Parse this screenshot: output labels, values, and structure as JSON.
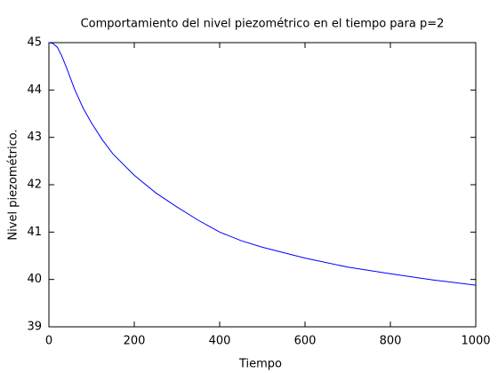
{
  "chart_data": {
    "type": "line",
    "title": "Comportamiento del nivel piezométrico en el tiempo para p=2",
    "xlabel": "Tiempo",
    "ylabel": "Nivel piezométrico.",
    "x": [
      0,
      10,
      20,
      30,
      40,
      60,
      80,
      100,
      125,
      150,
      200,
      250,
      300,
      350,
      400,
      450,
      500,
      600,
      700,
      800,
      900,
      1000
    ],
    "values": [
      45,
      44.98,
      44.9,
      44.72,
      44.5,
      44.02,
      43.62,
      43.3,
      42.95,
      42.65,
      42.2,
      41.83,
      41.53,
      41.25,
      41.0,
      40.82,
      40.68,
      40.45,
      40.26,
      40.12,
      39.99,
      39.88
    ],
    "color": "#0000ff",
    "xlim": [
      0,
      1000
    ],
    "xticks": [
      0,
      200,
      400,
      600,
      800,
      1000
    ],
    "ylim": [
      39,
      45
    ],
    "yticks": [
      39,
      40,
      41,
      42,
      43,
      44,
      45
    ]
  }
}
